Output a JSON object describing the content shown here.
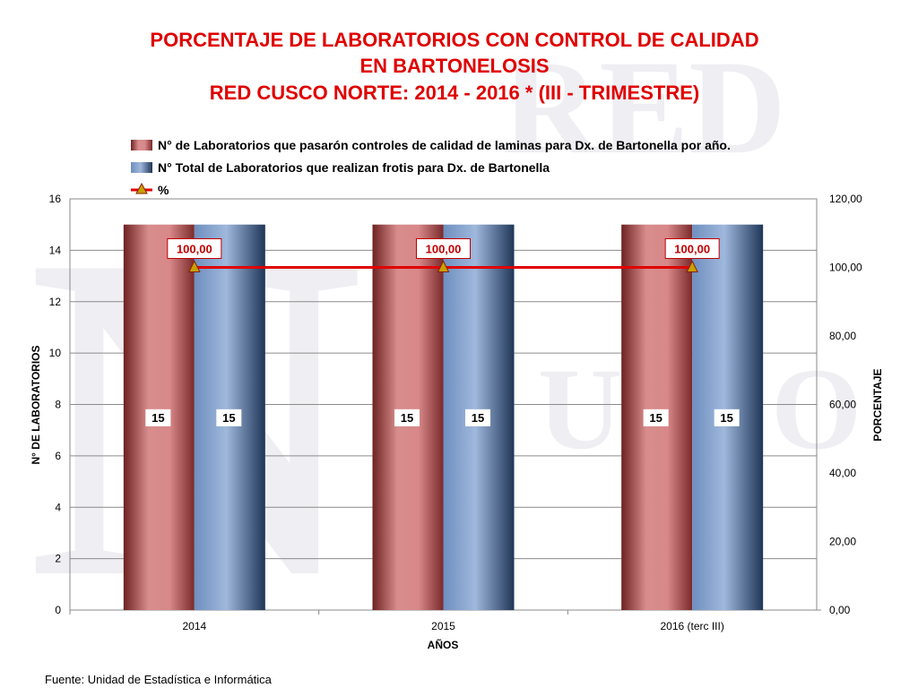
{
  "title_lines": [
    "PORCENTAJE DE LABORATORIOS CON CONTROL DE CALIDAD",
    "EN BARTONELOSIS",
    "RED CUSCO NORTE: 2014 - 2016 * (III - TRIMESTRE)"
  ],
  "source": "Fuente: Unidad de Estadística e Informática",
  "watermark_text": "RED CUSCO NORTE",
  "colors": {
    "title": "#e00000",
    "series1": "#c97373",
    "series2": "#7a9cc9",
    "line": "#e00000",
    "marker": "#c8a000"
  },
  "chart_data": {
    "type": "bar",
    "categories": [
      "2014",
      "2015",
      "2016 (terc III)"
    ],
    "xlabel": "AÑOS",
    "ylabel": "N° DE LABORATORIOS",
    "y2label": "PORCENTAJE",
    "ylim": [
      0,
      16
    ],
    "yticks": [
      "0",
      "2",
      "4",
      "6",
      "8",
      "10",
      "12",
      "14",
      "16"
    ],
    "y2lim": [
      0,
      120
    ],
    "y2ticks": [
      "0,00",
      "20,00",
      "40,00",
      "60,00",
      "80,00",
      "100,00",
      "120,00"
    ],
    "grid": true,
    "legend_position": "top",
    "series": [
      {
        "name": "N° de Laboratorios que pasarón controles de calidad de laminas para Dx. de Bartonella por año.",
        "type": "bar",
        "values": [
          15,
          15,
          15
        ],
        "labels": [
          "15",
          "15",
          "15"
        ]
      },
      {
        "name": "N° Total de Laboratorios que realizan frotis para Dx. de Bartonella",
        "type": "bar",
        "values": [
          15,
          15,
          15
        ],
        "labels": [
          "15",
          "15",
          "15"
        ]
      },
      {
        "name": "%",
        "type": "line",
        "axis": "secondary",
        "values": [
          100,
          100,
          100
        ],
        "labels": [
          "100,00",
          "100,00",
          "100,00"
        ]
      }
    ]
  }
}
